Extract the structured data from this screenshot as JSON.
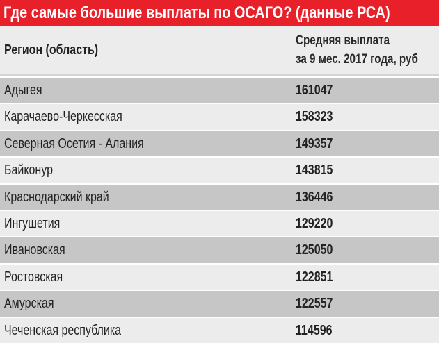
{
  "title": "Где самые большие выплаты по ОСАГО? (данные РСА)",
  "header": {
    "region": "Регион (область)",
    "payment_line1": "Средняя выплата",
    "payment_line2": "за 9 мес. 2017 года, руб"
  },
  "rows": [
    {
      "region": "Адыгея",
      "value": "161047"
    },
    {
      "region": "Карачаево-Черкесская",
      "value": "158323"
    },
    {
      "region": "Северная Осетия - Алания",
      "value": "149357"
    },
    {
      "region": "Байконур",
      "value": "143815"
    },
    {
      "region": "Краснодарский край",
      "value": "136446"
    },
    {
      "region": "Ингушетия",
      "value": "129220"
    },
    {
      "region": "Ивановская",
      "value": "125050"
    },
    {
      "region": "Ростовская",
      "value": "122851"
    },
    {
      "region": "Амурская",
      "value": "122557"
    },
    {
      "region": "Чеченская республика",
      "value": "114596"
    }
  ],
  "colors": {
    "title_bg": "#e8202a",
    "row_dark": "#c6c6c6",
    "row_light": "#ececec"
  }
}
